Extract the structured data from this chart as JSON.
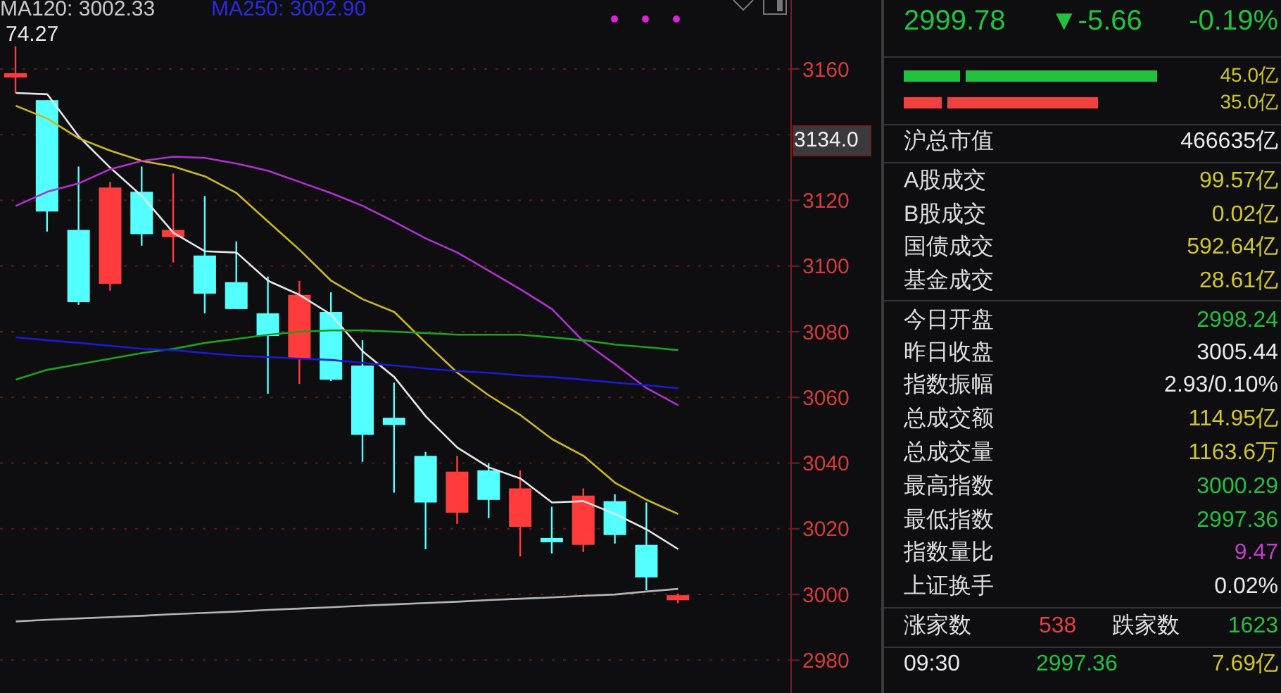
{
  "chart_data": [
    {
      "type": "candlestick",
      "categories": [
        null,
        null,
        null,
        null,
        null,
        null,
        null,
        null,
        null,
        null,
        null,
        null,
        null,
        null,
        null,
        null,
        null,
        null,
        null,
        null,
        null,
        null
      ],
      "ohlc": [
        [
          3157.4,
          3166.9,
          3152.7,
          3158.7
        ],
        [
          3150.5,
          3150.5,
          3110.5,
          3116.6
        ],
        [
          3111.0,
          3130.3,
          3088.2,
          3089.0
        ],
        [
          3094.6,
          3125.6,
          3092.5,
          3123.9
        ],
        [
          3122.6,
          3130.3,
          3106.2,
          3109.7
        ],
        [
          3108.8,
          3128.2,
          3101.1,
          3111.0
        ],
        [
          3103.2,
          3121.3,
          3085.6,
          3091.6
        ],
        [
          3095.1,
          3107.5,
          3086.9,
          3086.9
        ],
        [
          3085.6,
          3096.8,
          3061.1,
          3078.7
        ],
        [
          3071.8,
          3095.5,
          3064.1,
          3091.2
        ],
        [
          3086.0,
          3092.0,
          3065.0,
          3065.4
        ],
        [
          3069.7,
          3077.4,
          3040.4,
          3048.6
        ],
        [
          3053.8,
          3064.5,
          3031.0,
          3051.6
        ],
        [
          3042.2,
          3043.4,
          3013.8,
          3028.0
        ],
        [
          3024.9,
          3042.2,
          3021.5,
          3037.4
        ],
        [
          3037.8,
          3040.0,
          3023.2,
          3028.8
        ],
        [
          3020.6,
          3037.8,
          3011.6,
          3032.3
        ],
        [
          3017.2,
          3026.7,
          3012.5,
          3015.9
        ],
        [
          3015.1,
          3032.3,
          3012.9,
          3030.1
        ],
        [
          3028.4,
          3030.5,
          3015.5,
          3018.1
        ],
        [
          3015.1,
          3028.0,
          3001.3,
          3005.2
        ],
        [
          2998.24,
          3000.29,
          2997.36,
          2999.78
        ]
      ],
      "colors": [
        "#ff3b3b",
        "#54ffff",
        "#54ffff",
        "#ff3b3b",
        "#54ffff",
        "#ff3b3b",
        "#54ffff",
        "#54ffff",
        "#54ffff",
        "#ff3b3b",
        "#54ffff",
        "#54ffff",
        "#54ffff",
        "#54ffff",
        "#ff3b3b",
        "#54ffff",
        "#ff3b3b",
        "#54ffff",
        "#ff3b3b",
        "#54ffff",
        "#54ffff",
        "#ff3b3b"
      ],
      "series": [
        {
          "type": "line",
          "color": "#e6e6e6",
          "values": [
            3152.7,
            3152.3,
            3139.4,
            3129.9,
            3121.3,
            3110.1,
            3104.5,
            3104.1,
            3095.5,
            3091.2,
            3085.2,
            3074.0,
            3066.2,
            3054.2,
            3044.7,
            3038.7,
            3035.3,
            3028.0,
            3028.4,
            3024.5,
            3019.8,
            3013.8
          ]
        },
        {
          "type": "line",
          "color": "#cdb81c",
          "values": [
            3148.8,
            3144.9,
            3138.9,
            3135.1,
            3132.0,
            3130.3,
            3127.3,
            3122.2,
            3113.5,
            3104.9,
            3095.5,
            3089.9,
            3086.0,
            3076.6,
            3067.5,
            3060.6,
            3054.6,
            3047.3,
            3042.2,
            3034.0,
            3028.8,
            3024.5
          ]
        },
        {
          "type": "line",
          "color": "#b030d0",
          "values": [
            3118.3,
            3122.6,
            3125.2,
            3129.5,
            3132.0,
            3133.3,
            3132.9,
            3131.2,
            3129.0,
            3125.6,
            3122.2,
            3118.3,
            3113.5,
            3108.4,
            3104.1,
            3098.5,
            3092.9,
            3086.9,
            3077.0,
            3070.1,
            3062.8,
            3057.6
          ]
        },
        {
          "type": "line",
          "color": "#1fa020",
          "values": [
            3065.4,
            3068.4,
            3070.1,
            3071.8,
            3073.5,
            3074.8,
            3076.6,
            3077.8,
            3079.1,
            3080.0,
            3080.4,
            3080.4,
            3080.0,
            3079.6,
            3079.1,
            3079.1,
            3079.1,
            3078.3,
            3077.4,
            3076.1,
            3075.3,
            3074.4
          ]
        },
        {
          "type": "line",
          "color": "#1a1ad8",
          "values": [
            3078.3,
            3077.4,
            3076.6,
            3075.7,
            3074.8,
            3074.4,
            3073.5,
            3072.7,
            3072.3,
            3071.8,
            3071.4,
            3070.5,
            3069.7,
            3068.8,
            3068.0,
            3067.5,
            3066.7,
            3066.2,
            3065.4,
            3064.5,
            3063.7,
            3062.8
          ]
        },
        {
          "type": "line",
          "color": "#b4b4b4",
          "values": [
            2991.8,
            2992.3,
            2992.7,
            2993.1,
            2993.5,
            2994.0,
            2994.4,
            2994.8,
            2995.3,
            2995.7,
            2996.1,
            2996.6,
            2997.0,
            2997.4,
            2997.8,
            2998.3,
            2998.7,
            2999.1,
            2999.6,
            3000.0,
            3000.9,
            3001.7
          ]
        }
      ],
      "ylim": [
        2970,
        3181
      ],
      "yticks": [
        2980,
        3000,
        3020,
        3040,
        3060,
        3080,
        3100,
        3120,
        {
          "value": 3140,
          "label": null
        },
        3160
      ],
      "grid": "y",
      "annotations": [
        "MA120: 3002.33",
        "MA250: 3002.90",
        "74.27",
        "3134.0"
      ]
    },
    {
      "type": "other",
      "annotations": [
        "2999.78",
        "▼-5.66",
        "-0.19%",
        "45.0亿",
        "35.0亿",
        "沪总市值",
        "466635亿",
        "A股成交",
        "99.57亿",
        "B股成交",
        "0.02亿",
        "国债成交",
        "592.64亿",
        "基金成交",
        "28.61亿",
        "今日开盘",
        "2998.24",
        "昨日收盘",
        "3005.44",
        "指数振幅",
        "2.93/0.10%",
        "总成交额",
        "114.95亿",
        "总成交量",
        "1163.6万",
        "最高指数",
        "3000.29",
        "最低指数",
        "2997.36",
        "指数量比",
        "9.47",
        "上证换手",
        "0.02%",
        "涨家数",
        "538",
        "跌家数",
        "1623",
        "09:30",
        "2997.36",
        "7.69亿"
      ]
    }
  ]
}
